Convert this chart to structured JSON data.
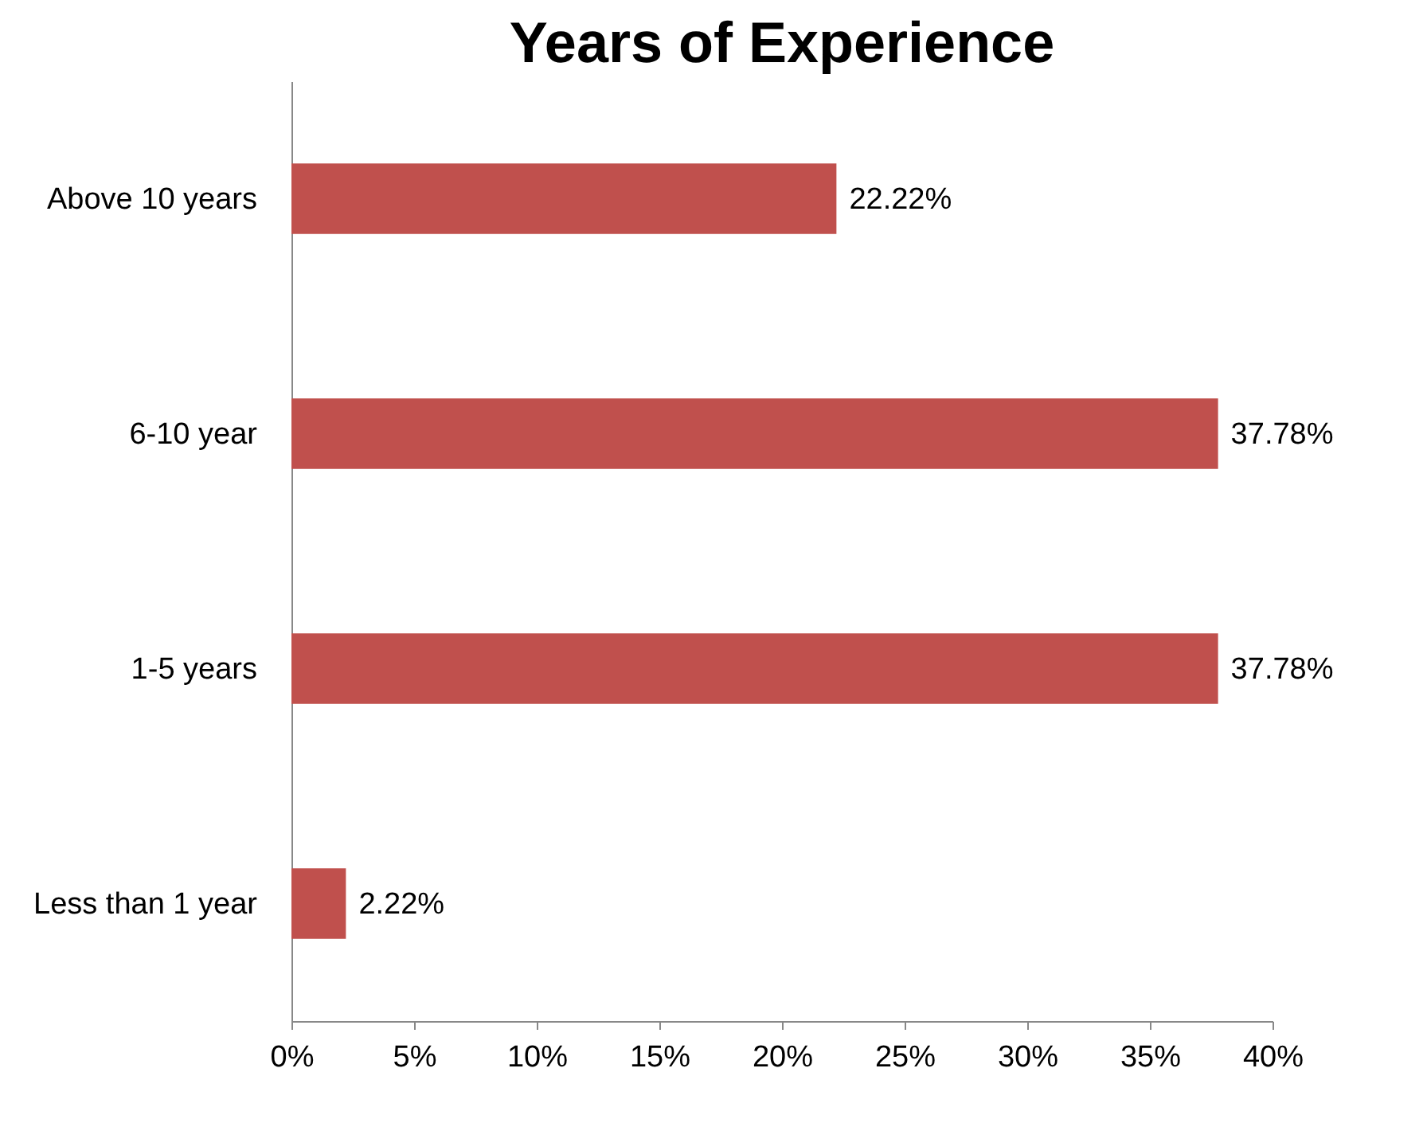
{
  "chart_data": {
    "type": "bar",
    "orientation": "horizontal",
    "title": "Years of Experience",
    "categories": [
      "Above 10 years",
      "6-10 year",
      "1-5 years",
      "Less than 1 year"
    ],
    "values": [
      22.22,
      37.78,
      37.78,
      2.22
    ],
    "value_labels": [
      "22.22%",
      "37.78%",
      "37.78%",
      "2.22%"
    ],
    "color": "#c0504d",
    "xlim": [
      0,
      40
    ],
    "xticks": [
      {
        "value": 0,
        "label": "0%"
      },
      {
        "value": 5,
        "label": "5%"
      },
      {
        "value": 10,
        "label": "10%"
      },
      {
        "value": 15,
        "label": "15%"
      },
      {
        "value": 20,
        "label": "20%"
      },
      {
        "value": 25,
        "label": "25%"
      },
      {
        "value": 30,
        "label": "30%"
      },
      {
        "value": 35,
        "label": "35%"
      },
      {
        "value": 40,
        "label": "40%"
      }
    ],
    "grid": false
  }
}
